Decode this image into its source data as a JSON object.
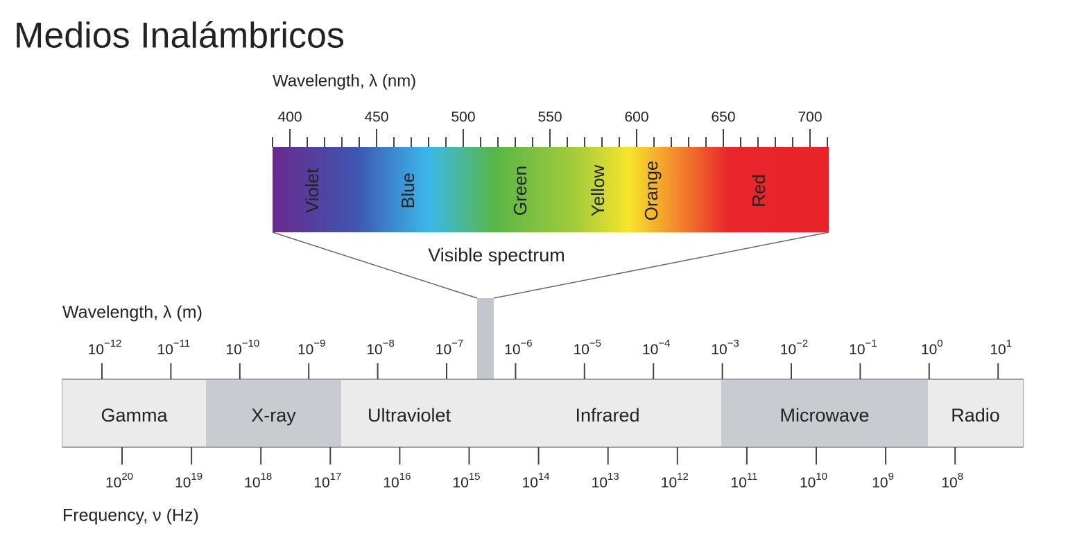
{
  "title": "Medios Inalámbricos",
  "visible": {
    "axis_label": "Wavelength, λ (nm)",
    "ticks": [
      "400",
      "450",
      "500",
      "550",
      "600",
      "650",
      "700"
    ],
    "colors": [
      "Violet",
      "Blue",
      "Green",
      "Yellow",
      "Orange",
      "Red"
    ],
    "caption": "Visible spectrum"
  },
  "wavelength": {
    "axis_label": "Wavelength, λ (m)",
    "ticks": [
      {
        "base": "10",
        "exp": "−12"
      },
      {
        "base": "10",
        "exp": "−11"
      },
      {
        "base": "10",
        "exp": "−10"
      },
      {
        "base": "10",
        "exp": "−9"
      },
      {
        "base": "10",
        "exp": "−8"
      },
      {
        "base": "10",
        "exp": "−7"
      },
      {
        "base": "10",
        "exp": "−6"
      },
      {
        "base": "10",
        "exp": "−5"
      },
      {
        "base": "10",
        "exp": "−4"
      },
      {
        "base": "10",
        "exp": "−3"
      },
      {
        "base": "10",
        "exp": "−2"
      },
      {
        "base": "10",
        "exp": "−1"
      },
      {
        "base": "10",
        "exp": "0"
      },
      {
        "base": "10",
        "exp": "1"
      }
    ]
  },
  "bands": [
    "Gamma",
    "X-ray",
    "Ultraviolet",
    "Infrared",
    "Microwave",
    "Radio"
  ],
  "frequency": {
    "axis_label": "Frequency, ν (Hz)",
    "ticks": [
      {
        "base": "10",
        "exp": "20"
      },
      {
        "base": "10",
        "exp": "19"
      },
      {
        "base": "10",
        "exp": "18"
      },
      {
        "base": "10",
        "exp": "17"
      },
      {
        "base": "10",
        "exp": "16"
      },
      {
        "base": "10",
        "exp": "15"
      },
      {
        "base": "10",
        "exp": "14"
      },
      {
        "base": "10",
        "exp": "13"
      },
      {
        "base": "10",
        "exp": "12"
      },
      {
        "base": "10",
        "exp": "11"
      },
      {
        "base": "10",
        "exp": "10"
      },
      {
        "base": "10",
        "exp": "9"
      },
      {
        "base": "10",
        "exp": "8"
      }
    ]
  }
}
